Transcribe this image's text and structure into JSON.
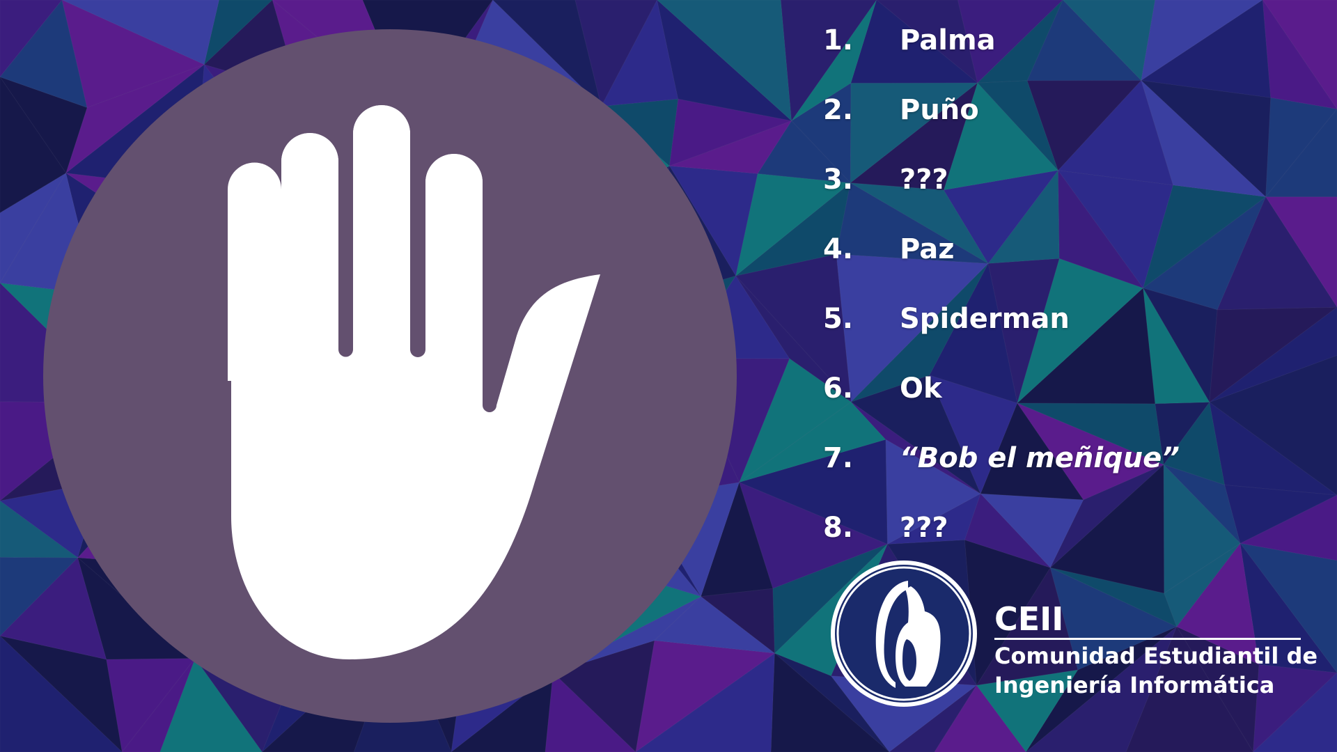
{
  "colors": {
    "badge": "#63506f",
    "text": "#ffffff",
    "logo_navy": "#1a2a6b",
    "bg_palette": [
      "#16184a",
      "#1f2170",
      "#2a1f6e",
      "#3b1d7e",
      "#4a1a86",
      "#5a1c8c",
      "#1d3a7a",
      "#165a78",
      "#11737a",
      "#0f4a6a",
      "#251a5a",
      "#1a1f5e",
      "#2d2a8a",
      "#3a3fa0"
    ]
  },
  "hand": {
    "icon": "raised-hand-icon"
  },
  "list": {
    "items": [
      {
        "number": "1.",
        "label": "Palma",
        "italic": false
      },
      {
        "number": "2.",
        "label": "Puño",
        "italic": false
      },
      {
        "number": "3.",
        "label": "???",
        "italic": false
      },
      {
        "number": "4.",
        "label": "Paz",
        "italic": false
      },
      {
        "number": "5.",
        "label": "Spiderman",
        "italic": false
      },
      {
        "number": "6.",
        "label": "Ok",
        "italic": false
      },
      {
        "number": "7.",
        "label": "“Bob el meñique”",
        "italic": true
      },
      {
        "number": "8.",
        "label": "???",
        "italic": false
      }
    ]
  },
  "logo": {
    "icon": "ceii-emblem-icon",
    "acronym": "CEII",
    "line1": "Comunidad Estudiantil de",
    "line2": "Ingeniería Informática"
  }
}
